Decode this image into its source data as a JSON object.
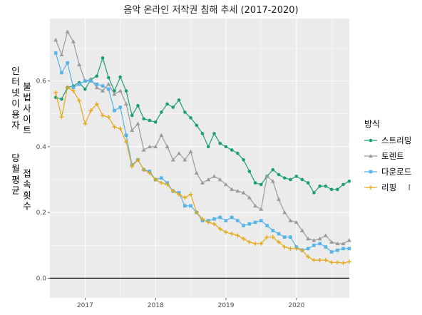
{
  "chart_data": {
    "type": "line",
    "title": "음악 온라인 저작권 침해 추세 (2017-2020)",
    "ylabel_col1": "인터넷이용자",
    "ylabel_col2": "불법사이트",
    "ylabel_col3": "당월평균",
    "ylabel_col4": "접속횟수",
    "xlim": [
      2016.5,
      2020.75
    ],
    "ylim": [
      -0.06,
      0.79
    ],
    "x_ticks": [
      {
        "value": 2017,
        "label": "2017"
      },
      {
        "value": 2018,
        "label": "2018"
      },
      {
        "value": 2019,
        "label": "2019"
      },
      {
        "value": 2020,
        "label": "2020"
      }
    ],
    "y_ticks": [
      {
        "value": 0.0,
        "label": "0.0"
      },
      {
        "value": 0.2,
        "label": "0.2"
      },
      {
        "value": 0.4,
        "label": "0.4"
      },
      {
        "value": 0.6,
        "label": "0.6"
      }
    ],
    "grid": true,
    "legend_position": "right",
    "legend_title": "방식",
    "series": [
      {
        "name": "스트리밍",
        "color": "#1B9E77",
        "marker": "circle",
        "values": [
          0.55,
          0.545,
          0.58,
          0.585,
          0.595,
          0.575,
          0.605,
          0.615,
          0.67,
          0.61,
          0.57,
          0.612,
          0.57,
          0.495,
          0.525,
          0.485,
          0.48,
          0.475,
          0.505,
          0.53,
          0.52,
          0.542,
          0.505,
          0.488,
          0.465,
          0.44,
          0.4,
          0.44,
          0.41,
          0.4,
          0.39,
          0.38,
          0.36,
          0.325,
          0.29,
          0.285,
          0.31,
          0.33,
          0.315,
          0.305,
          0.3,
          0.31,
          0.3,
          0.29,
          0.26,
          0.28,
          0.28,
          0.27,
          0.27,
          0.285,
          0.295
        ]
      },
      {
        "name": "토렌트",
        "color": "#9B9B9B",
        "marker": "triangle",
        "values": [
          0.725,
          0.68,
          0.75,
          0.72,
          0.65,
          0.6,
          0.605,
          0.58,
          0.57,
          0.59,
          0.56,
          0.57,
          0.53,
          0.45,
          0.47,
          0.39,
          0.4,
          0.4,
          0.435,
          0.4,
          0.36,
          0.38,
          0.36,
          0.385,
          0.32,
          0.29,
          0.3,
          0.31,
          0.3,
          0.285,
          0.27,
          0.265,
          0.26,
          0.245,
          0.22,
          0.21,
          0.31,
          0.295,
          0.24,
          0.2,
          0.175,
          0.17,
          0.145,
          0.12,
          0.115,
          0.12,
          0.13,
          0.11,
          0.105,
          0.105,
          0.115
        ]
      },
      {
        "name": "다운로드",
        "color": "#56B4E9",
        "marker": "square",
        "values": [
          0.685,
          0.625,
          0.655,
          0.58,
          0.59,
          0.6,
          0.6,
          0.59,
          0.585,
          0.575,
          0.51,
          0.52,
          0.435,
          0.345,
          0.36,
          0.33,
          0.325,
          0.3,
          0.305,
          0.29,
          0.265,
          0.26,
          0.22,
          0.22,
          0.2,
          0.175,
          0.175,
          0.18,
          0.185,
          0.175,
          0.185,
          0.175,
          0.16,
          0.165,
          0.17,
          0.175,
          0.16,
          0.145,
          0.135,
          0.125,
          0.125,
          0.095,
          0.085,
          0.09,
          0.1,
          0.105,
          0.095,
          0.08,
          0.085,
          0.09,
          0.09
        ]
      },
      {
        "name": "리핑",
        "color": "#E6A817",
        "marker": "plus",
        "values": [
          0.565,
          0.49,
          0.58,
          0.57,
          0.54,
          0.47,
          0.51,
          0.53,
          0.495,
          0.49,
          0.46,
          0.455,
          0.415,
          0.34,
          0.36,
          0.33,
          0.32,
          0.3,
          0.29,
          0.285,
          0.265,
          0.255,
          0.245,
          0.255,
          0.2,
          0.18,
          0.17,
          0.165,
          0.15,
          0.14,
          0.135,
          0.13,
          0.12,
          0.11,
          0.105,
          0.105,
          0.125,
          0.125,
          0.11,
          0.095,
          0.09,
          0.09,
          0.085,
          0.065,
          0.055,
          0.055,
          0.055,
          0.048,
          0.048,
          0.046,
          0.05
        ]
      }
    ],
    "x_start": 2016.583,
    "x_step": 0.0833
  },
  "page": {
    "legend_stray_mark": "⌈"
  }
}
